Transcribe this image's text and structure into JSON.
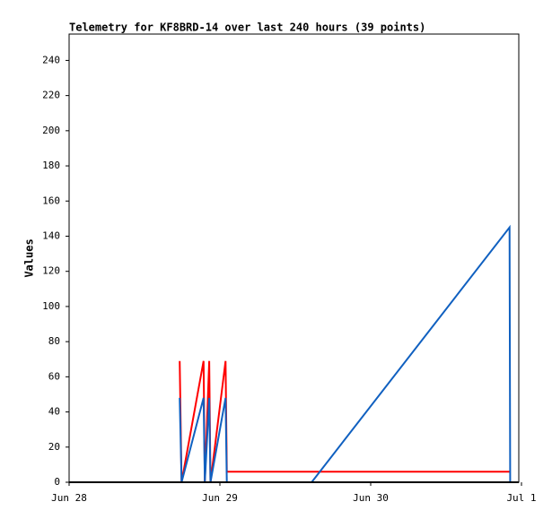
{
  "chart_data": {
    "type": "line",
    "title": "Telemetry for KF8BRD-14 over last 240 hours (39 points)",
    "y_label": "Values",
    "xlim": [
      0,
      71.57
    ],
    "xticks": [
      {
        "value": 0,
        "label": "Jun 28"
      },
      {
        "value": 24,
        "label": "Jun 29"
      },
      {
        "value": 48,
        "label": "Jun 30"
      },
      {
        "value": 72,
        "label": "Jul 1"
      }
    ],
    "ylim": [
      0,
      255
    ],
    "yticks": [
      0,
      20,
      40,
      60,
      80,
      100,
      120,
      140,
      160,
      180,
      200,
      220,
      240
    ],
    "series": [
      {
        "color": "#ff0000",
        "x": [
          17.6,
          17.9,
          21.4,
          21.6,
          22.3,
          22.5,
          24.9,
          25.1,
          70.1
        ],
        "values": [
          69,
          0,
          69,
          0,
          69,
          0,
          69,
          6,
          6
        ]
      },
      {
        "color": "#1060c0",
        "x": [
          17.6,
          17.9,
          21.4,
          21.6,
          22.3,
          22.5,
          24.9,
          25.1,
          38.6,
          70.1,
          70.2
        ],
        "values": [
          48,
          0,
          48,
          0,
          48,
          0,
          48,
          0,
          0,
          145,
          0
        ]
      }
    ]
  }
}
